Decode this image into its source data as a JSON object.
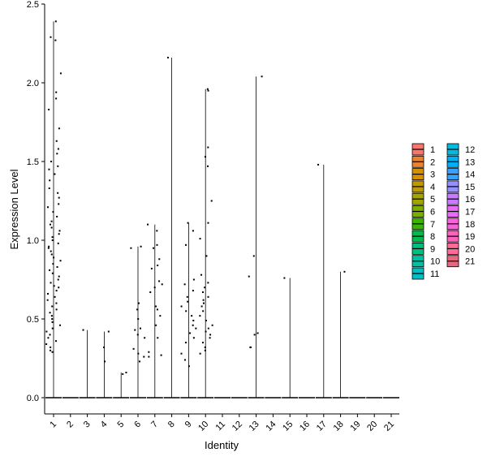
{
  "chart_data": {
    "type": "violin",
    "title": "",
    "xlabel": "Identity",
    "ylabel": "Expression Level",
    "ylim": [
      0,
      2.5
    ],
    "yticks": [
      0.0,
      0.5,
      1.0,
      1.5,
      2.0,
      2.5
    ],
    "ytick_labels": [
      "0.0",
      "0.5",
      "1.0",
      "1.5",
      "2.0",
      "2.5"
    ],
    "categories": [
      "1",
      "2",
      "3",
      "4",
      "5",
      "6",
      "7",
      "8",
      "9",
      "10",
      "11",
      "12",
      "13",
      "14",
      "15",
      "16",
      "17",
      "18",
      "19",
      "20",
      "21"
    ],
    "max_values": [
      2.39,
      0,
      0.43,
      0.42,
      0.16,
      0.96,
      1.1,
      2.16,
      1.11,
      1.96,
      0,
      0,
      2.04,
      0,
      0.76,
      0,
      1.48,
      0.8,
      0,
      0,
      0
    ],
    "points": {
      "1": [
        2.39,
        2.29,
        2.27,
        2.06,
        1.94,
        1.9,
        1.83,
        1.71,
        1.63,
        1.58,
        1.55,
        1.5,
        1.47,
        1.45,
        1.42,
        1.38,
        1.33,
        1.3,
        1.27,
        1.23,
        1.21,
        1.18,
        1.15,
        1.12,
        1.1,
        1.08,
        1.06,
        1.04,
        1.02,
        1.0,
        0.98,
        0.96,
        0.95,
        0.93,
        0.91,
        0.89,
        0.87,
        0.85,
        0.83,
        0.81,
        0.79,
        0.77,
        0.75,
        0.73,
        0.71,
        0.7,
        0.68,
        0.66,
        0.64,
        0.62,
        0.6,
        0.58,
        0.56,
        0.54,
        0.52,
        0.5,
        0.48,
        0.46,
        0.44,
        0.42,
        0.4,
        0.38,
        0.36,
        0.34,
        0.32,
        0.3,
        0.29
      ],
      "3": [
        0.43
      ],
      "4": [
        0.42,
        0.32,
        0.23
      ],
      "5": [
        0.16,
        0.15
      ],
      "6": [
        0.96,
        0.95,
        0.6,
        0.56,
        0.5,
        0.44,
        0.43,
        0.4,
        0.38,
        0.31,
        0.28,
        0.26,
        0.23
      ],
      "7": [
        1.1,
        1.06,
        0.97,
        0.95,
        0.88,
        0.84,
        0.82,
        0.74,
        0.72,
        0.7,
        0.67,
        0.58,
        0.56,
        0.52,
        0.46,
        0.38,
        0.29,
        0.27,
        0.26
      ],
      "8": [
        2.16
      ],
      "9": [
        1.11,
        1.06,
        0.97,
        0.75,
        0.72,
        0.68,
        0.64,
        0.61,
        0.58,
        0.55,
        0.52,
        0.49,
        0.46,
        0.44,
        0.41,
        0.38,
        0.35,
        0.28,
        0.24,
        0.2
      ],
      "10": [
        1.96,
        1.95,
        1.59,
        1.53,
        1.47,
        1.25,
        1.11,
        1.01,
        0.9,
        0.78,
        0.73,
        0.7,
        0.67,
        0.64,
        0.62,
        0.6,
        0.58,
        0.55,
        0.52,
        0.49,
        0.46,
        0.44,
        0.42,
        0.4,
        0.38,
        0.35,
        0.32,
        0.3,
        0.28
      ],
      "13": [
        2.04,
        0.9,
        0.77,
        0.41,
        0.4,
        0.32,
        0.32
      ],
      "15": [
        0.76
      ],
      "17": [
        1.48
      ],
      "18": [
        0.8
      ]
    },
    "legend": {
      "placement": "right",
      "entries": [
        {
          "label": "1",
          "color": "#F8766D"
        },
        {
          "label": "2",
          "color": "#EA8331"
        },
        {
          "label": "3",
          "color": "#D89000"
        },
        {
          "label": "4",
          "color": "#C09B00"
        },
        {
          "label": "5",
          "color": "#A3A500"
        },
        {
          "label": "6",
          "color": "#7CAE00"
        },
        {
          "label": "7",
          "color": "#39B600"
        },
        {
          "label": "8",
          "color": "#00BB4E"
        },
        {
          "label": "9",
          "color": "#00BF7D"
        },
        {
          "label": "10",
          "color": "#00C1A3"
        },
        {
          "label": "11",
          "color": "#00BFC4"
        },
        {
          "label": "12",
          "color": "#00BAE0"
        },
        {
          "label": "13",
          "color": "#00B0F6"
        },
        {
          "label": "14",
          "color": "#35A2FF"
        },
        {
          "label": "15",
          "color": "#9590FF"
        },
        {
          "label": "16",
          "color": "#C77CFF"
        },
        {
          "label": "17",
          "color": "#E76BF3"
        },
        {
          "label": "18",
          "color": "#FA62DB"
        },
        {
          "label": "19",
          "color": "#FF62BC"
        },
        {
          "label": "20",
          "color": "#FF6A98"
        },
        {
          "label": "21",
          "color": "#E7677F"
        }
      ]
    },
    "grid": false
  }
}
